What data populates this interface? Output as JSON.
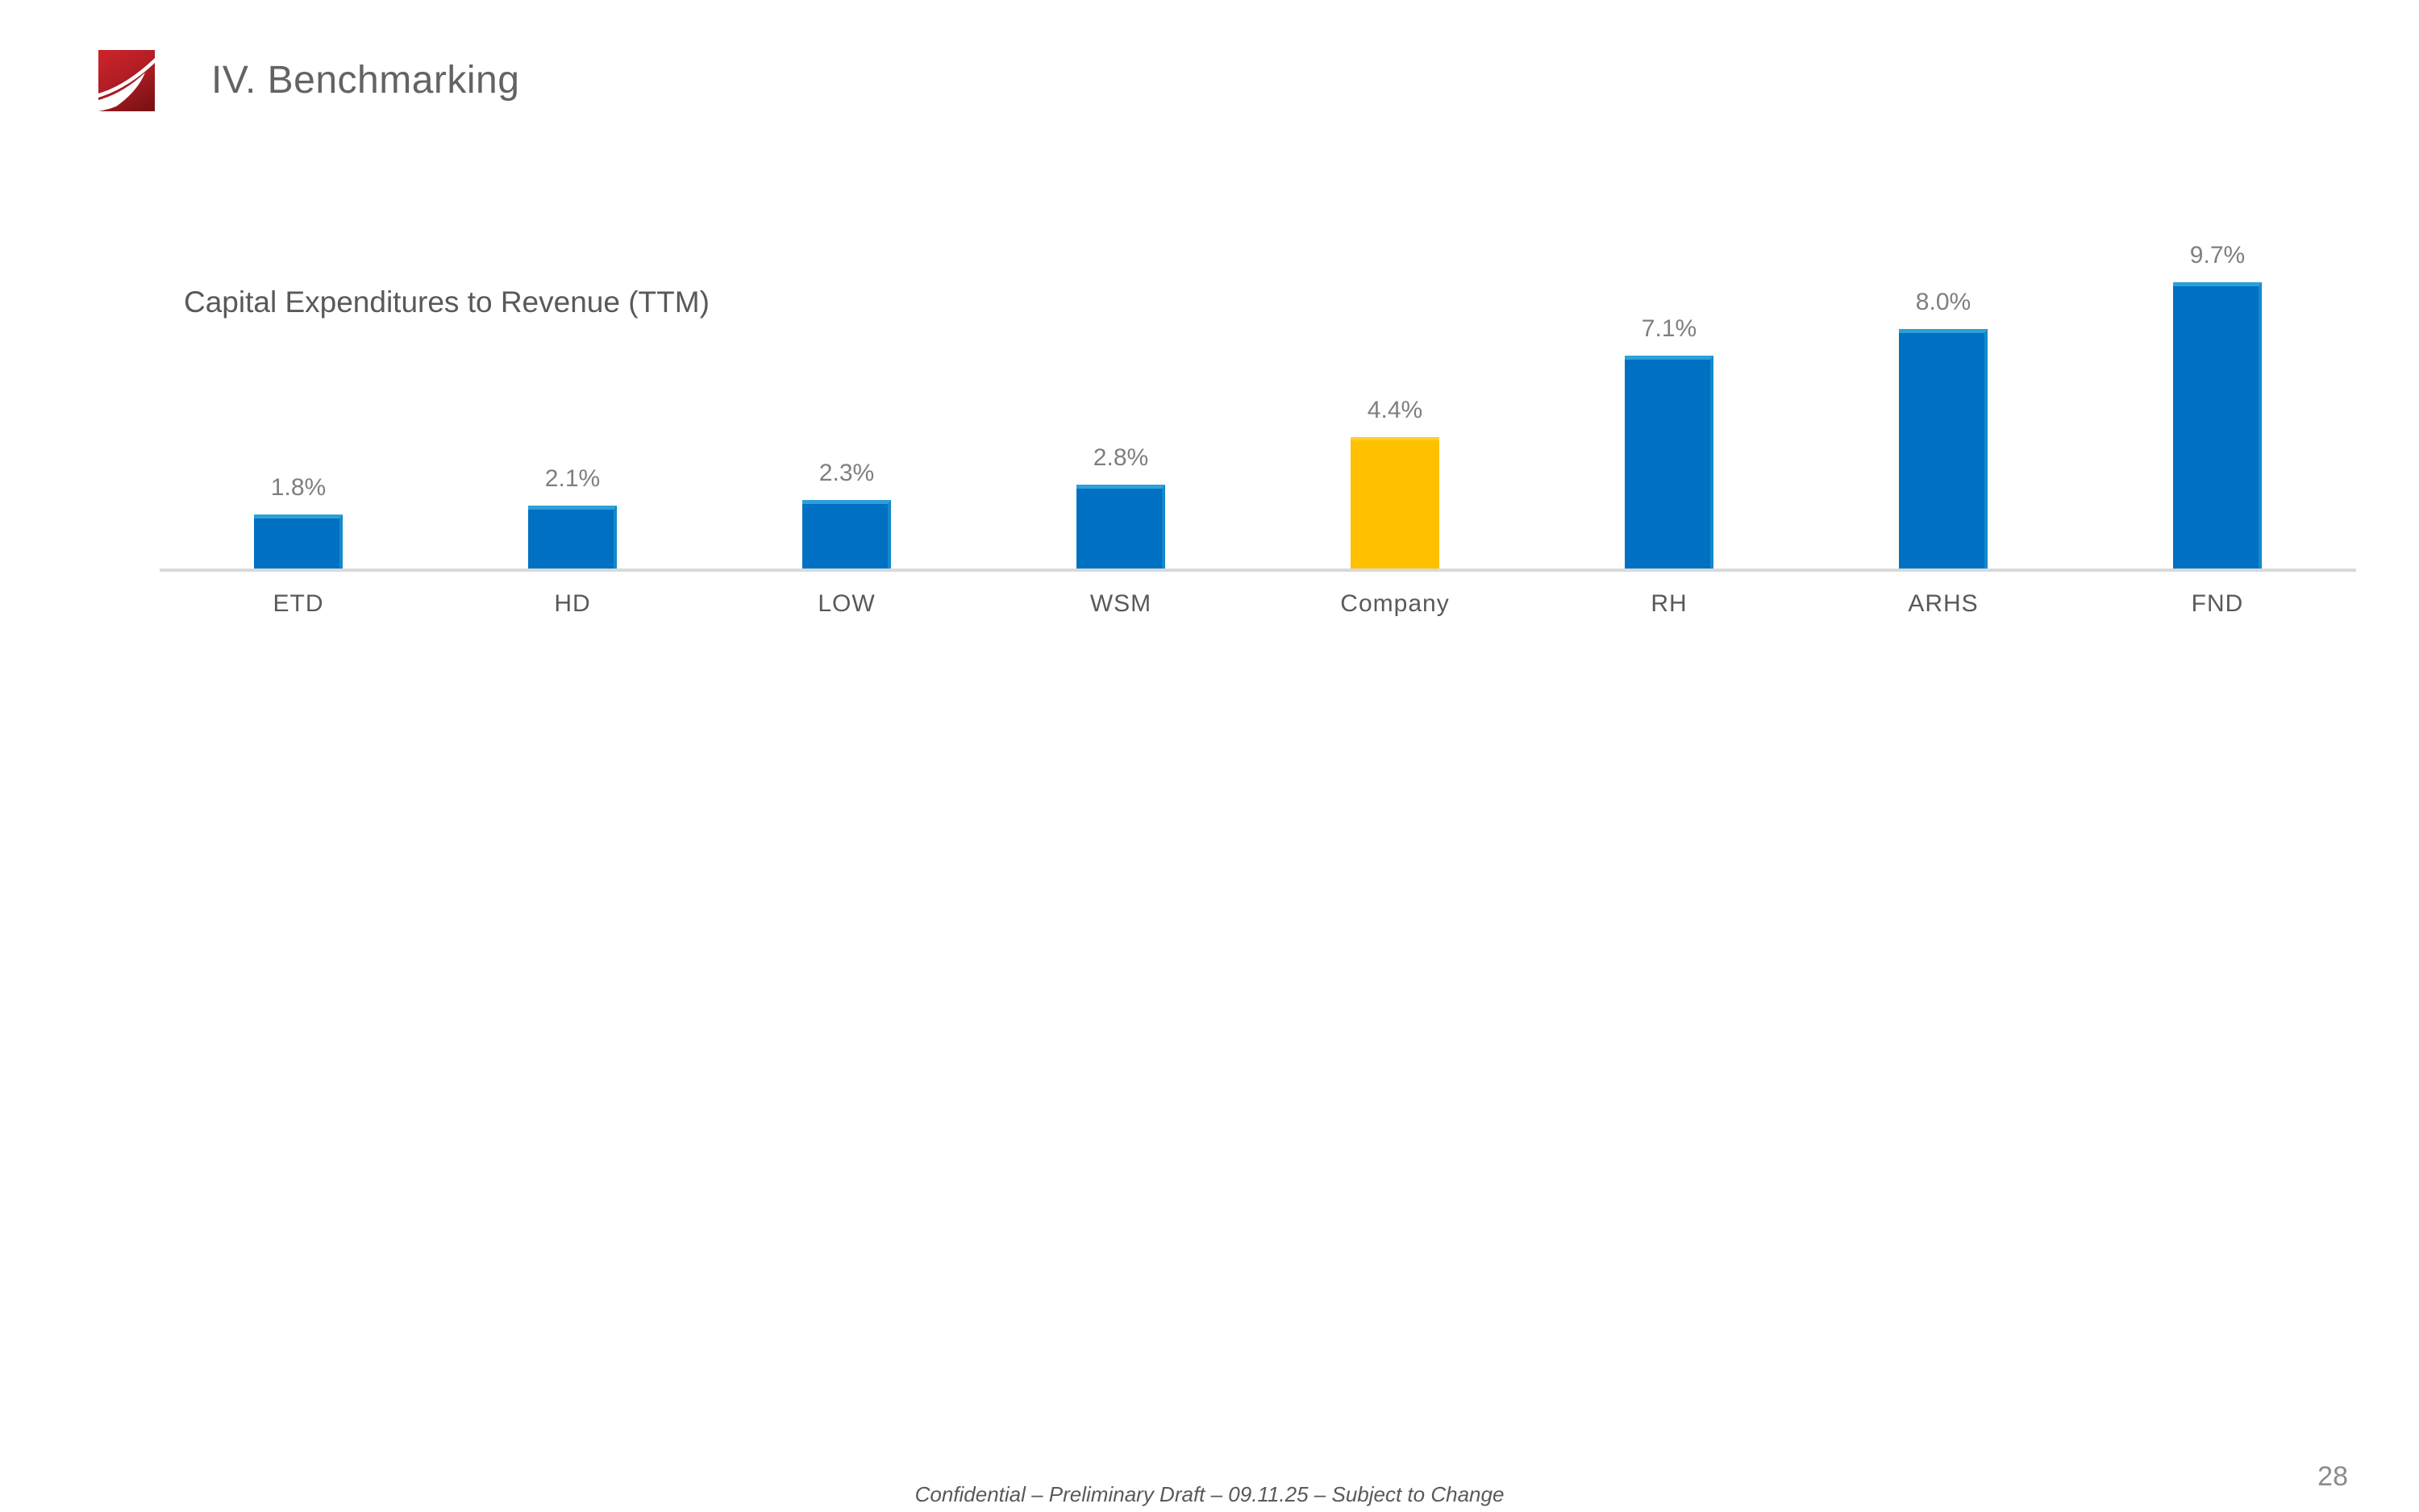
{
  "slide": {
    "title": "IV. Benchmarking",
    "footer": "Confidential – Preliminary Draft – 09.11.25 –  Subject to Change",
    "page_number": "28"
  },
  "logo": {
    "name": "red-swoosh-logo",
    "red_top": "#C9232A",
    "red_bottom": "#7C1215",
    "swoosh_color": "#FFFFFF"
  },
  "chart_data": {
    "type": "bar",
    "title": "Capital Expenditures to Revenue (TTM)",
    "categories": [
      "ETD",
      "HD",
      "LOW",
      "WSM",
      "Company",
      "RH",
      "ARHS",
      "FND"
    ],
    "values": [
      1.8,
      2.1,
      2.3,
      2.8,
      4.4,
      7.1,
      8.0,
      9.7
    ],
    "value_labels": [
      "1.8%",
      "2.1%",
      "2.3%",
      "2.8%",
      "4.4%",
      "7.1%",
      "8.0%",
      "9.7%"
    ],
    "highlight_category": "Company",
    "bar_color": "#0071C2",
    "highlight_color": "#FFC000",
    "value_label_color": "#7F7F7F",
    "category_label_color": "#595959",
    "axis_line_color": "#D9D9D9",
    "xlabel": "",
    "ylabel": "",
    "ylim": [
      0,
      10.9
    ],
    "grid": false,
    "legend": null
  }
}
